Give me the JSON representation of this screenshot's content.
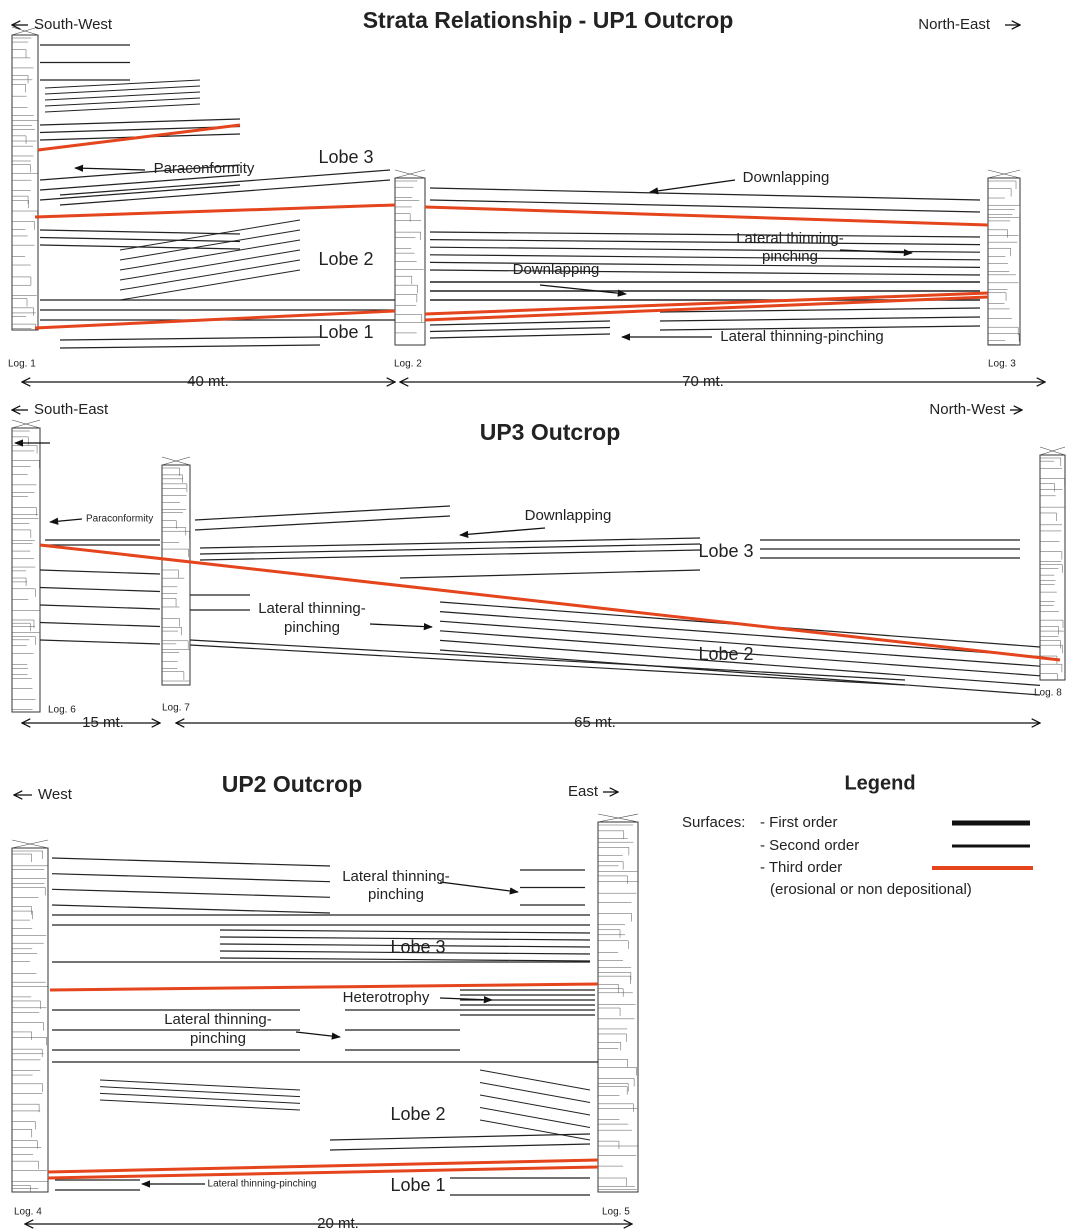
{
  "panels": [
    {
      "title": "Strata Relationship - UP1 Outcrop",
      "left_direction": "South-West",
      "right_direction": "North-East",
      "logs": [
        "Log. 1",
        "Log. 2",
        "Log. 3"
      ],
      "distances": [
        "40 mt.",
        "70 mt."
      ],
      "annotations": [
        "Paraconformity",
        "Lobe 3",
        "Downlapping",
        "Lateral thinning-",
        "pinching",
        "Lobe 2",
        "Downlapping",
        "Lobe 1",
        "Lateral thinning-pinching"
      ]
    },
    {
      "title": "UP3 Outcrop",
      "left_direction": "South-East",
      "right_direction": "North-West",
      "logs": [
        "Log. 6",
        "Log. 7",
        "Log. 8"
      ],
      "distances": [
        "15 mt.",
        "65 mt."
      ],
      "annotations": [
        "Paraconformity",
        "Downlapping",
        "Lobe 3",
        "Lateral thinning-",
        "pinching",
        "Lobe 2"
      ]
    },
    {
      "title": "UP2 Outcrop",
      "left_direction": "West",
      "right_direction": "East",
      "logs": [
        "Log. 4",
        "Log. 5"
      ],
      "distances": [
        "20 mt."
      ],
      "annotations": [
        "Lateral thinning-",
        "pinching",
        "Lobe 3",
        "Heterotrophy",
        "Lateral thinning-",
        "pinching",
        "Lobe 2",
        "Lateral thinning-pinching",
        "Lobe 1"
      ]
    }
  ],
  "legend": {
    "title": "Legend",
    "prefix": "Surfaces:",
    "items": [
      "- First order",
      "- Second order",
      "- Third order"
    ],
    "note": "(erosional or non depositional)"
  }
}
